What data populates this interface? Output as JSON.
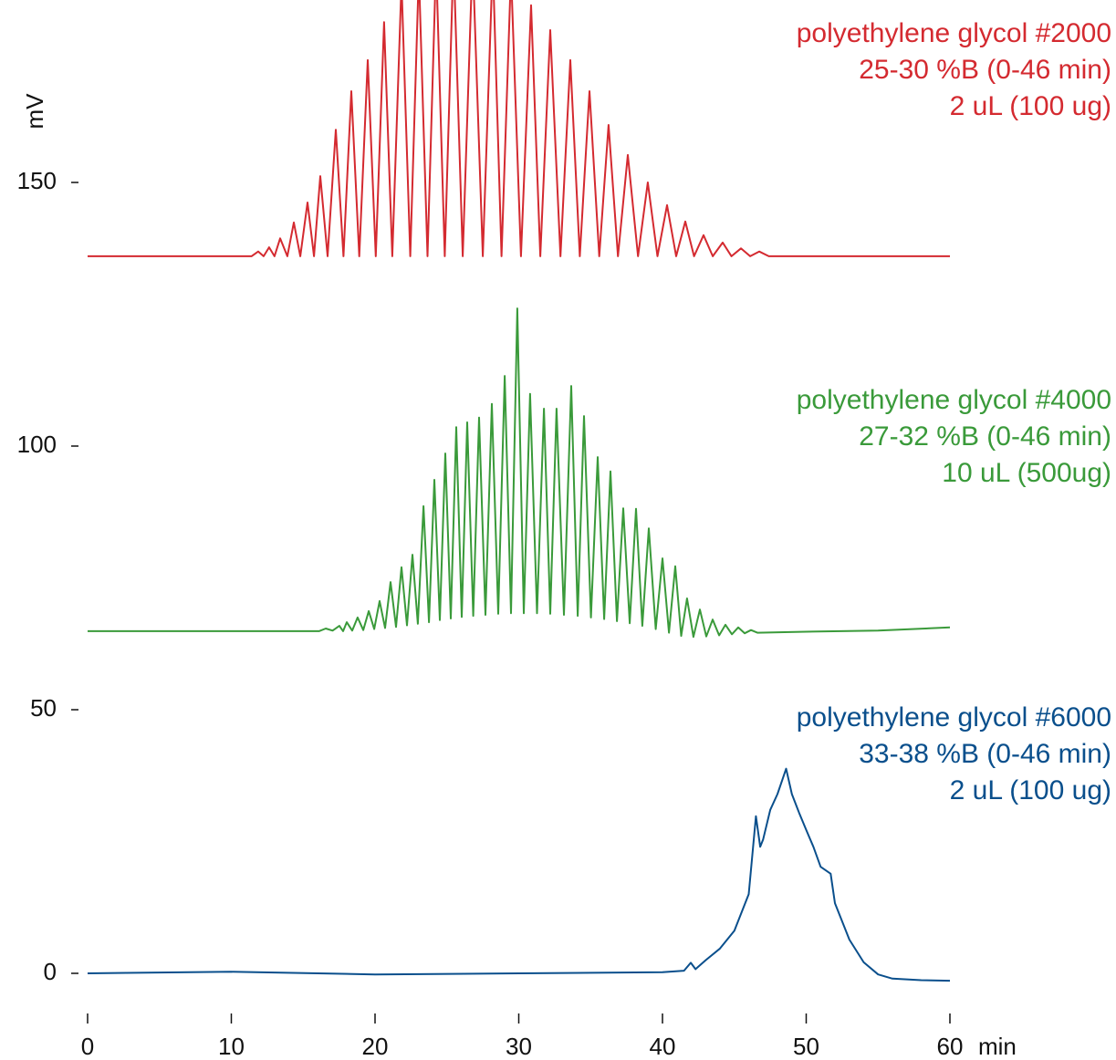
{
  "chart_data": {
    "type": "line",
    "xlabel": "min",
    "ylabel": "mV",
    "xlim": [
      0,
      60
    ],
    "xticks": [
      0,
      10,
      20,
      30,
      40,
      50,
      60
    ],
    "ylim": [
      -5,
      184
    ],
    "yticks": [
      0,
      50,
      100,
      150
    ],
    "series": [
      {
        "name": "polyethylene glycol #2000",
        "notes": [
          "25-30 %B (0-46 min)",
          "2 uL (100 ug)"
        ],
        "color": "#d42a30",
        "x": [
          0,
          11.4,
          11.87,
          12.25,
          12.63,
          13.0,
          13.4,
          13.9,
          14.35,
          14.8,
          15.3,
          15.75,
          16.19,
          16.7,
          17.27,
          17.8,
          18.35,
          18.9,
          19.49,
          20.05,
          20.63,
          21.2,
          21.84,
          22.45,
          23.05,
          23.65,
          24.25,
          24.85,
          25.46,
          26.1,
          26.79,
          27.5,
          28.19,
          28.8,
          29.46,
          30.15,
          30.86,
          31.5,
          32.19,
          32.9,
          33.59,
          34.25,
          34.92,
          35.6,
          36.25,
          36.9,
          37.59,
          38.3,
          38.98,
          39.65,
          40.32,
          40.95,
          41.59,
          42.2,
          42.86,
          43.5,
          44.19,
          44.8,
          45.46,
          46.1,
          46.73,
          47.4,
          60
        ],
        "values": [
          136,
          136,
          136.9,
          136,
          137.7,
          136,
          139.4,
          136,
          142.4,
          136,
          146.2,
          136,
          151.2,
          136,
          160,
          136,
          167.3,
          136,
          173.2,
          136,
          180.4,
          136,
          188,
          136,
          190,
          136,
          192,
          136,
          193,
          136,
          193,
          136,
          192,
          136,
          190,
          136,
          183.6,
          136,
          178.9,
          136,
          173.2,
          136,
          167.3,
          136,
          160.9,
          136,
          155.2,
          136,
          150,
          136,
          145.7,
          136,
          142.6,
          136,
          140,
          136,
          138.6,
          136,
          137.5,
          136,
          136.9,
          136,
          136
        ]
      },
      {
        "name": "polyethylene glycol #4000",
        "notes": [
          "27-32 %B (0-46 min)",
          "10 uL (500ug)"
        ],
        "color": "#3a9a3a",
        "x": [
          0,
          16.1,
          16.57,
          17.05,
          17.52,
          17.78,
          18.03,
          18.41,
          18.79,
          19.18,
          19.56,
          19.94,
          20.32,
          20.7,
          21.08,
          21.46,
          21.84,
          22.22,
          22.6,
          22.98,
          23.37,
          23.75,
          24.13,
          24.51,
          24.89,
          25.27,
          25.65,
          26.03,
          26.41,
          26.83,
          27.24,
          27.68,
          28.13,
          28.57,
          29.02,
          29.46,
          29.9,
          30.35,
          30.79,
          31.27,
          31.75,
          32.19,
          32.63,
          33.14,
          33.65,
          34.1,
          34.54,
          35.02,
          35.49,
          35.94,
          36.38,
          36.83,
          37.27,
          37.72,
          38.16,
          38.6,
          39.05,
          39.53,
          40.0,
          40.45,
          40.89,
          41.3,
          41.71,
          42.15,
          42.6,
          43.05,
          43.49,
          43.94,
          44.38,
          44.83,
          45.27,
          45.72,
          46.16,
          46.6,
          50,
          55,
          60
        ],
        "values": [
          64.9,
          64.9,
          65.4,
          65.0,
          65.9,
          64.9,
          66.6,
          65.0,
          67.5,
          65.1,
          68.7,
          65.3,
          70.6,
          65.5,
          74.2,
          65.7,
          77.0,
          66,
          79.4,
          66.3,
          88.6,
          66.6,
          93.6,
          67,
          98.6,
          67.3,
          103.6,
          67.6,
          104.5,
          67.8,
          105.4,
          68,
          108.0,
          68.2,
          113.3,
          68.3,
          126.1,
          68.3,
          109.9,
          68.3,
          107.1,
          68.2,
          107.1,
          68,
          111.4,
          67.8,
          105.7,
          67.5,
          97.9,
          67.2,
          95.2,
          66.8,
          88.2,
          66.4,
          88.1,
          65.9,
          84.4,
          65.3,
          78.7,
          64.6,
          77.2,
          64.0,
          71.1,
          63.8,
          69.0,
          63.9,
          67.1,
          64.1,
          66.1,
          64.3,
          65.6,
          64.5,
          65.1,
          64.6,
          64.8,
          65,
          65.6
        ]
      },
      {
        "name": "polyethylene glycol #6000",
        "notes": [
          "33-38 %B (0-46 min)",
          "2 uL (100 ug)"
        ],
        "color": "#0a4f8c",
        "x": [
          0,
          10,
          20,
          30,
          40,
          41.5,
          41.97,
          42.3,
          43,
          44,
          45,
          46,
          46.5,
          46.8,
          47,
          47.5,
          48,
          48.6,
          49,
          49.5,
          50,
          50.5,
          51,
          51.7,
          52,
          53,
          54,
          55,
          56,
          58,
          60
        ],
        "values": [
          0,
          0.3,
          -0.2,
          0,
          0.2,
          0.5,
          2,
          0.8,
          2.5,
          4.7,
          8.1,
          15,
          29.8,
          24,
          25.4,
          31,
          34,
          38.8,
          34,
          30.5,
          27.2,
          24,
          20.2,
          18.9,
          13.3,
          6.4,
          2.1,
          -0.2,
          -1,
          -1.3,
          -1.4
        ]
      }
    ]
  }
}
